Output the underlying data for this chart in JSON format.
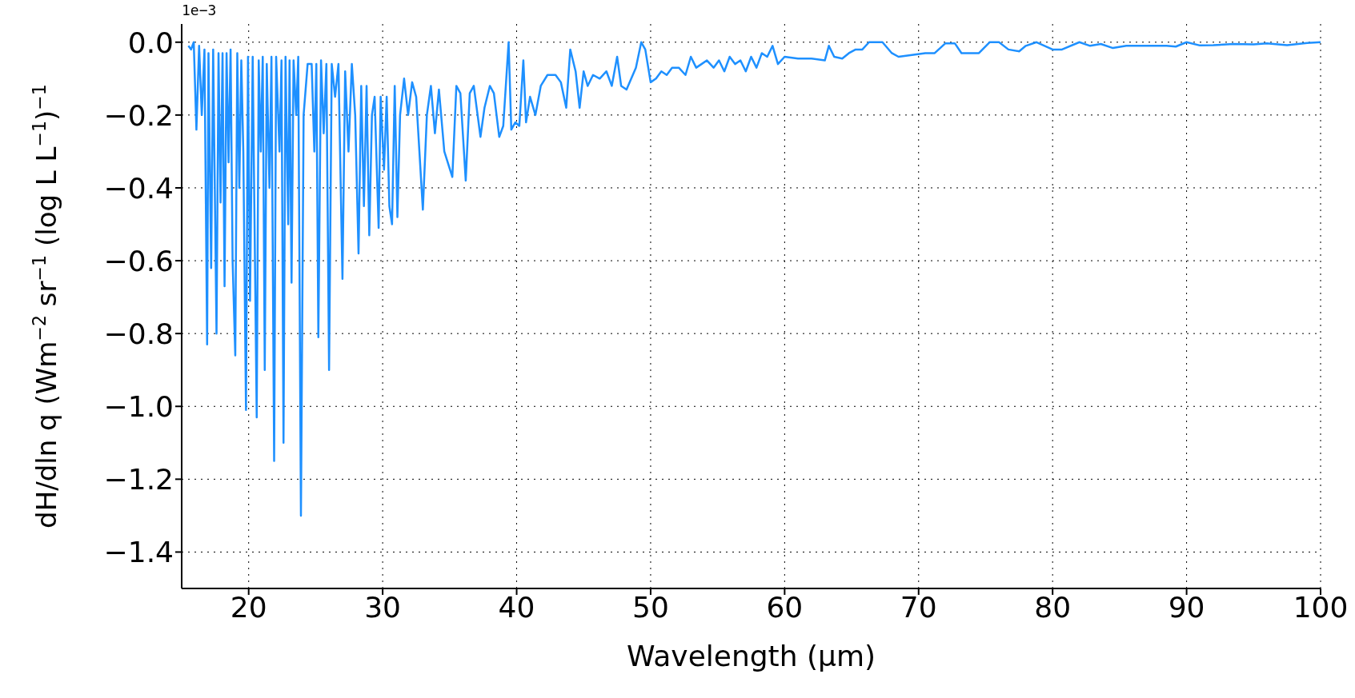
{
  "chart_data": {
    "type": "line",
    "xlabel": "Wavelength (μm)",
    "ylabel": "dH/dln q  (Wm$^{−2}$ sr$^{−1}$ (log L L$^{−1}$)$^{−1}$",
    "annotations": [
      "1e−3"
    ],
    "x": [
      15.5,
      15.7,
      15.9,
      16.1,
      16.3,
      16.5,
      16.7,
      16.9,
      17.0,
      17.2,
      17.35,
      17.6,
      17.75,
      17.9,
      18.05,
      18.2,
      18.35,
      18.5,
      18.65,
      18.8,
      19.0,
      19.15,
      19.3,
      19.45,
      19.6,
      19.8,
      19.95,
      20.1,
      20.3,
      20.6,
      20.75,
      20.9,
      21.05,
      21.2,
      21.35,
      21.55,
      21.7,
      21.9,
      22.05,
      22.3,
      22.45,
      22.6,
      22.75,
      22.95,
      23.05,
      23.2,
      23.35,
      23.55,
      23.7,
      23.9,
      24.1,
      24.4,
      24.7,
      24.9,
      25.05,
      25.2,
      25.4,
      25.6,
      25.8,
      26.0,
      26.2,
      26.45,
      26.7,
      27.0,
      27.2,
      27.45,
      27.7,
      27.95,
      28.2,
      28.4,
      28.6,
      28.8,
      29.0,
      29.2,
      29.4,
      29.7,
      29.85,
      30.1,
      30.3,
      30.5,
      30.7,
      30.9,
      31.1,
      31.3,
      31.6,
      31.9,
      32.2,
      32.5,
      33.0,
      33.3,
      33.6,
      33.9,
      34.2,
      34.6,
      35.2,
      35.5,
      35.8,
      36.2,
      36.5,
      36.8,
      37.3,
      37.6,
      38.0,
      38.3,
      38.7,
      39.0,
      39.4,
      39.6,
      39.9,
      40.2,
      40.5,
      40.7,
      41.0,
      41.4,
      41.8,
      42.3,
      42.9,
      43.3,
      43.7,
      44.0,
      44.4,
      44.7,
      45.0,
      45.3,
      45.7,
      46.2,
      46.7,
      47.1,
      47.5,
      47.8,
      48.2,
      48.9,
      49.3,
      49.6,
      50.0,
      50.4,
      50.8,
      51.2,
      51.6,
      52.1,
      52.6,
      53.0,
      53.4,
      53.8,
      54.2,
      54.7,
      55.1,
      55.5,
      55.9,
      56.3,
      56.7,
      57.1,
      57.5,
      57.9,
      58.3,
      58.7,
      59.1,
      59.5,
      60.0,
      61.0,
      62.0,
      63.0,
      63.3,
      63.7,
      64.3,
      64.8,
      65.3,
      65.8,
      66.3,
      67.3,
      68.0,
      68.5,
      69.5,
      70.5,
      71.2,
      72.0,
      72.7,
      73.2,
      74.5,
      75.3,
      76.0,
      76.7,
      77.5,
      78.0,
      78.8,
      80.0,
      80.7,
      82.0,
      82.8,
      83.6,
      84.5,
      85.5,
      87.0,
      88.5,
      89.2,
      90.0,
      91.0,
      92.0,
      93.5,
      95.0,
      96.0,
      97.5,
      99.0,
      100
    ],
    "series": [
      {
        "color": "#1e90ff",
        "values": [
          -0.01,
          -0.02,
          0.0,
          -0.24,
          -0.01,
          -0.2,
          -0.02,
          -0.83,
          -0.03,
          -0.62,
          -0.02,
          -0.8,
          -0.03,
          -0.44,
          -0.03,
          -0.67,
          -0.03,
          -0.33,
          -0.02,
          -0.6,
          -0.86,
          -0.03,
          -0.4,
          -0.05,
          -0.3,
          -1.01,
          -0.04,
          -0.71,
          -0.04,
          -1.03,
          -0.05,
          -0.3,
          -0.04,
          -0.9,
          -0.06,
          -0.4,
          -0.04,
          -1.15,
          -0.04,
          -0.3,
          -0.05,
          -1.1,
          -0.04,
          -0.5,
          -0.05,
          -0.66,
          -0.05,
          -0.2,
          -0.04,
          -1.3,
          -0.2,
          -0.06,
          -0.06,
          -0.3,
          -0.06,
          -0.81,
          -0.05,
          -0.25,
          -0.06,
          -0.9,
          -0.06,
          -0.15,
          -0.06,
          -0.65,
          -0.08,
          -0.3,
          -0.06,
          -0.2,
          -0.58,
          -0.12,
          -0.45,
          -0.12,
          -0.53,
          -0.2,
          -0.15,
          -0.51,
          -0.15,
          -0.35,
          -0.15,
          -0.45,
          -0.5,
          -0.12,
          -0.48,
          -0.2,
          -0.1,
          -0.2,
          -0.11,
          -0.15,
          -0.46,
          -0.2,
          -0.12,
          -0.25,
          -0.13,
          -0.3,
          -0.37,
          -0.12,
          -0.14,
          -0.38,
          -0.14,
          -0.12,
          -0.26,
          -0.18,
          -0.12,
          -0.14,
          -0.26,
          -0.23,
          0.0,
          -0.24,
          -0.22,
          -0.23,
          -0.05,
          -0.22,
          -0.15,
          -0.2,
          -0.12,
          -0.09,
          -0.09,
          -0.11,
          -0.18,
          -0.02,
          -0.08,
          -0.18,
          -0.08,
          -0.12,
          -0.09,
          -0.1,
          -0.08,
          -0.12,
          -0.04,
          -0.12,
          -0.13,
          -0.07,
          0.0,
          -0.02,
          -0.11,
          -0.1,
          -0.08,
          -0.09,
          -0.07,
          -0.07,
          -0.09,
          -0.04,
          -0.07,
          -0.06,
          -0.05,
          -0.07,
          -0.05,
          -0.08,
          -0.04,
          -0.06,
          -0.05,
          -0.08,
          -0.04,
          -0.07,
          -0.03,
          -0.04,
          -0.01,
          -0.06,
          -0.04,
          -0.045,
          -0.045,
          -0.05,
          -0.01,
          -0.04,
          -0.045,
          -0.03,
          -0.02,
          -0.02,
          0.0,
          0.0,
          -0.03,
          -0.04,
          -0.035,
          -0.03,
          -0.03,
          -0.003,
          -0.003,
          -0.03,
          -0.03,
          0.0,
          0.0,
          -0.02,
          -0.025,
          -0.01,
          0.0,
          -0.02,
          -0.02,
          0.0,
          -0.01,
          -0.005,
          -0.016,
          -0.01,
          -0.01,
          -0.01,
          -0.012,
          0.0,
          -0.009,
          -0.008,
          -0.005,
          -0.006,
          -0.003,
          -0.008,
          -0.002,
          0.0
        ]
      }
    ],
    "xlim": [
      15,
      100
    ],
    "xticks": [
      20,
      30,
      40,
      50,
      60,
      70,
      80,
      90,
      100
    ],
    "ylim": [
      -1.5,
      0.05
    ],
    "yticks": [
      {
        "value": 0,
        "label": "0.0"
      },
      {
        "value": -0.2,
        "label": "−0.2"
      },
      {
        "value": -0.4,
        "label": "−0.4"
      },
      {
        "value": -0.6,
        "label": "−0.6"
      },
      {
        "value": -0.8,
        "label": "−0.8"
      },
      {
        "value": -1.0,
        "label": "−1.0"
      },
      {
        "value": -1.2,
        "label": "−1.2"
      },
      {
        "value": -1.4,
        "label": "−1.4"
      }
    ],
    "grid": true,
    "line_style": "solid",
    "marker": "none",
    "legend": false
  }
}
